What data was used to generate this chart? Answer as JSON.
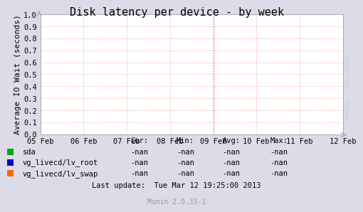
{
  "title": "Disk latency per device - by week",
  "ylabel": "Average IO Wait (seconds)",
  "xlim_dates": [
    "05 Feb",
    "06 Feb",
    "07 Feb",
    "08 Feb",
    "09 Feb",
    "10 Feb",
    "11 Feb",
    "12 Feb"
  ],
  "ylim": [
    0.0,
    1.0
  ],
  "yticks": [
    0.0,
    0.1,
    0.2,
    0.3,
    0.4,
    0.5,
    0.6,
    0.7,
    0.8,
    0.9,
    1.0
  ],
  "bg_color": "#dcdce8",
  "plot_bg_color": "#ffffff",
  "grid_color_h": "#ffaaaa",
  "grid_color_v": "#ffaaaa",
  "title_fontsize": 11,
  "axis_label_fontsize": 8,
  "tick_fontsize": 7.5,
  "legend_items": [
    {
      "label": "sda",
      "color": "#00aa00"
    },
    {
      "label": "vg_livecd/lv_root",
      "color": "#0000cc"
    },
    {
      "label": "vg_livecd/lv_swap",
      "color": "#ff6600"
    }
  ],
  "table_headers": [
    "Cur:",
    "Min:",
    "Avg:",
    "Max:"
  ],
  "table_values": [
    [
      "-nan",
      "-nan",
      "-nan",
      "-nan"
    ],
    [
      "-nan",
      "-nan",
      "-nan",
      "-nan"
    ],
    [
      "-nan",
      "-nan",
      "-nan",
      "-nan"
    ]
  ],
  "last_update": "Last update:  Tue Mar 12 19:25:00 2013",
  "footer": "Munin 2.0.33-1",
  "watermark": "RRDTOOL / TOBI OETIKER",
  "watermark_color": "#ccccdd",
  "arrow_color": "#aaaacc"
}
